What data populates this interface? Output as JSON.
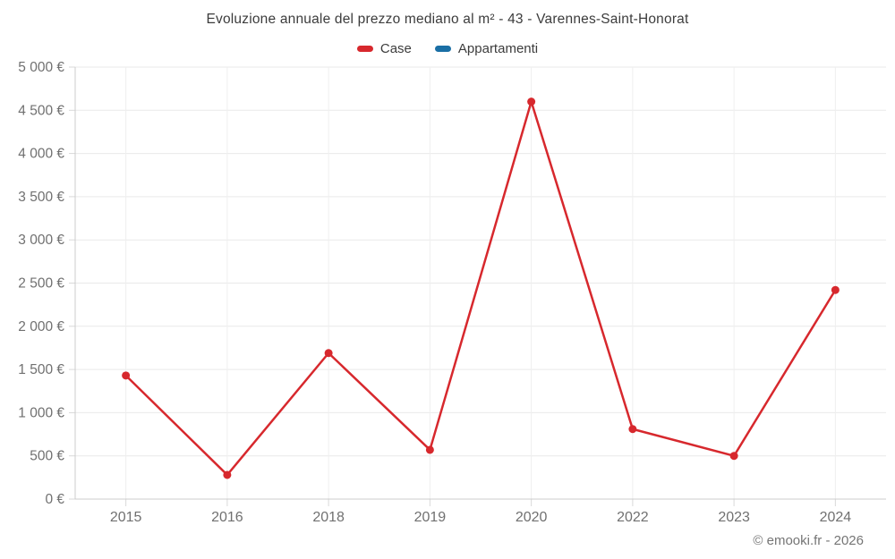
{
  "title": "Evoluzione annuale del prezzo mediano al m² - 43 - Varennes-Saint-Honorat",
  "legend": {
    "items": [
      {
        "label": "Case",
        "color": "#d7282d"
      },
      {
        "label": "Appartamenti",
        "color": "#1a6fa5"
      }
    ]
  },
  "footer": {
    "credit": "© emooki.fr - 2026"
  },
  "chart_data": {
    "type": "line",
    "title": "Evoluzione annuale del prezzo mediano al m² - 43 - Varennes-Saint-Honorat",
    "categories": [
      "2015",
      "2016",
      "2018",
      "2019",
      "2020",
      "2022",
      "2023",
      "2024"
    ],
    "series": [
      {
        "name": "Case",
        "color": "#d7282d",
        "values": [
          1430,
          280,
          1690,
          570,
          4600,
          810,
          500,
          2420
        ]
      },
      {
        "name": "Appartamenti",
        "color": "#1a6fa5",
        "values": [
          null,
          null,
          null,
          null,
          null,
          null,
          null,
          null
        ]
      }
    ],
    "xlabel": "",
    "ylabel": "",
    "ylim": [
      0,
      5000
    ],
    "y_tick_step": 500,
    "y_tick_labels": [
      "0 €",
      "500 €",
      "1 000 €",
      "1 500 €",
      "2 000 €",
      "2 500 €",
      "3 000 €",
      "3 500 €",
      "4 000 €",
      "4 500 €",
      "5 000 €"
    ],
    "grid": true,
    "legend_position": "top",
    "currency": "€"
  },
  "colors": {
    "grid_h": "#e9e9e9",
    "grid_v": "#efefef",
    "axis": "#cccccc",
    "tick": "#d9d9d9",
    "axis_label": "#707070"
  }
}
